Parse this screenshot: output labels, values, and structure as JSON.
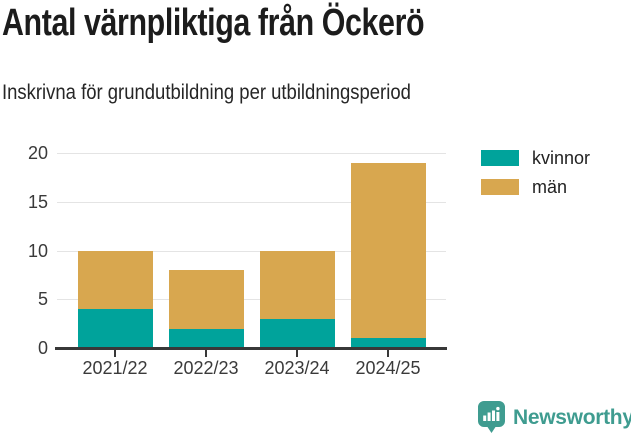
{
  "header": {
    "title": "Antal värnpliktiga från Öckerö",
    "subtitle": "Inskrivna för grundutbildning per utbildningsperiod"
  },
  "chart_data": {
    "type": "bar",
    "stacked": true,
    "title": "Antal värnpliktiga från Öckerö",
    "subtitle": "Inskrivna för grundutbildning per utbildningsperiod",
    "categories": [
      "2021/22",
      "2022/23",
      "2023/24",
      "2024/25"
    ],
    "series": [
      {
        "name": "kvinnor",
        "color": "#00a39b",
        "values": [
          4,
          2,
          3,
          1
        ]
      },
      {
        "name": "män",
        "color": "#d8a74f",
        "values": [
          6,
          6,
          7,
          18
        ]
      }
    ],
    "totals": [
      10,
      8,
      10,
      19
    ],
    "xlabel": "",
    "ylabel": "",
    "ylim": [
      0,
      20
    ],
    "yticks": [
      0,
      5,
      10,
      15,
      20
    ],
    "grid": "horizontal",
    "legend_position": "right-top"
  },
  "colors": {
    "kvinnor": "#00a39b",
    "man": "#d8a74f",
    "axis": "#383838",
    "gridline": "#e4e4e4",
    "tick_text": "#3a3a3a",
    "brand": "#3f9c90"
  },
  "footer": {
    "brand": "Newsworthy",
    "logo_icon": "bar-chart-speech-bubble-icon"
  }
}
